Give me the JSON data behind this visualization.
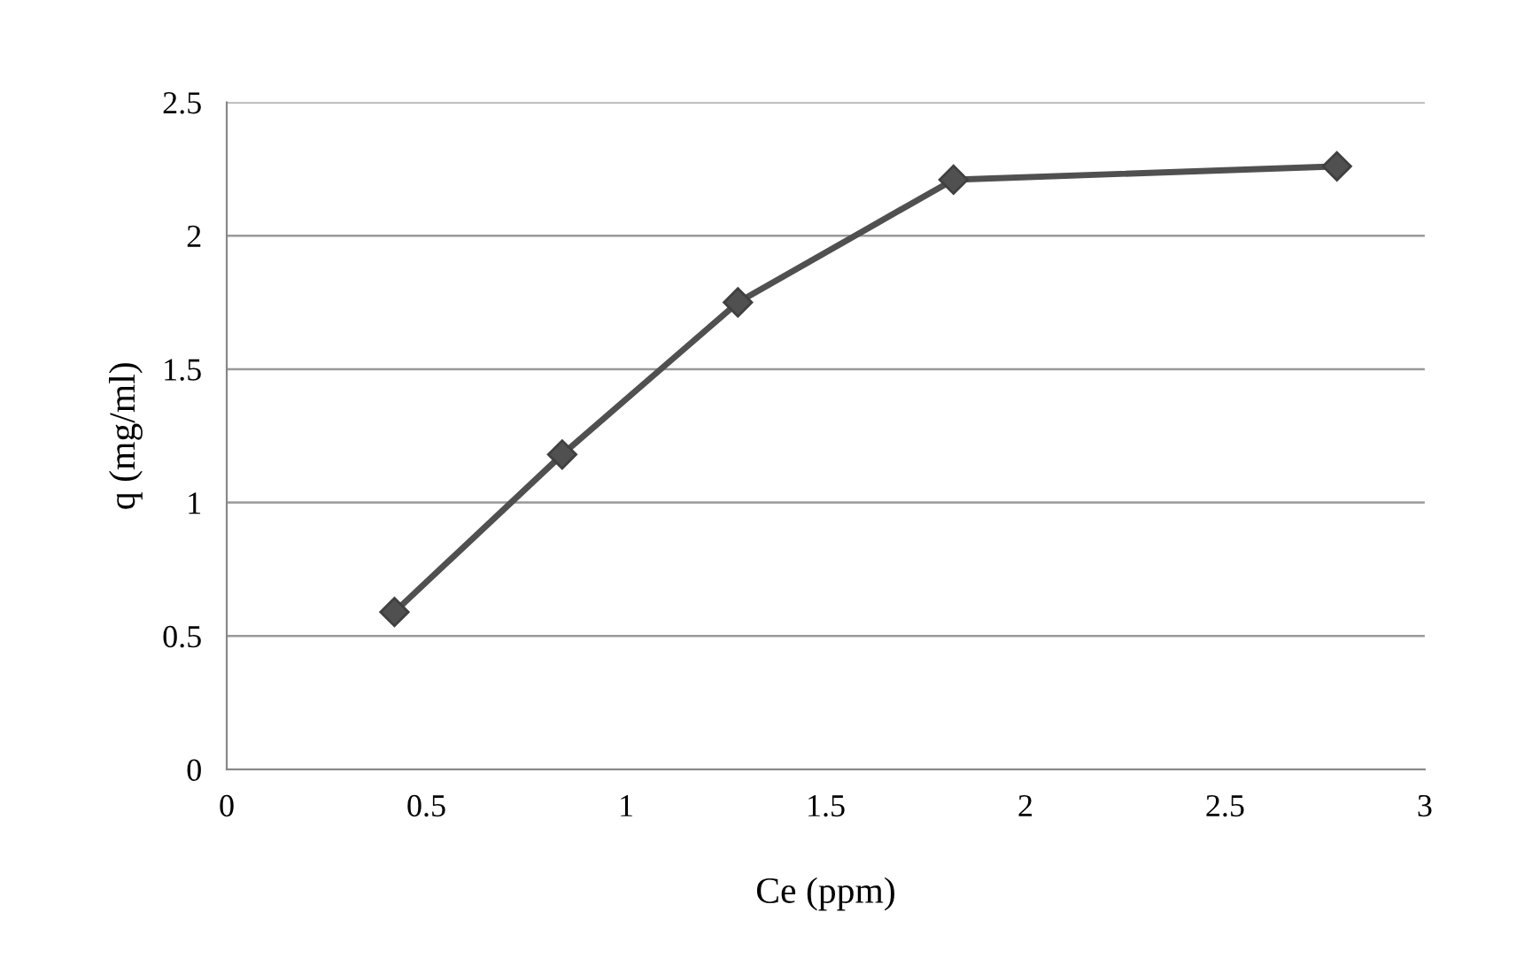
{
  "chart_data": {
    "type": "line",
    "xlabel": "Ce (ppm)",
    "ylabel": "q (mg/ml)",
    "x": [
      0.42,
      0.84,
      1.28,
      1.82,
      2.78
    ],
    "series": [
      {
        "color": "#505050",
        "values": [
          0.59,
          1.18,
          1.75,
          2.21,
          2.26
        ]
      }
    ],
    "xlim": [
      0,
      3
    ],
    "xticks": [
      0,
      0.5,
      1,
      1.5,
      2,
      2.5,
      3
    ],
    "ylim": [
      0,
      2.5
    ],
    "yticks": [
      0,
      0.5,
      1,
      1.5,
      2,
      2.5
    ],
    "grid": "y",
    "marker": "diamond",
    "line_style": "solid",
    "legend": false
  }
}
